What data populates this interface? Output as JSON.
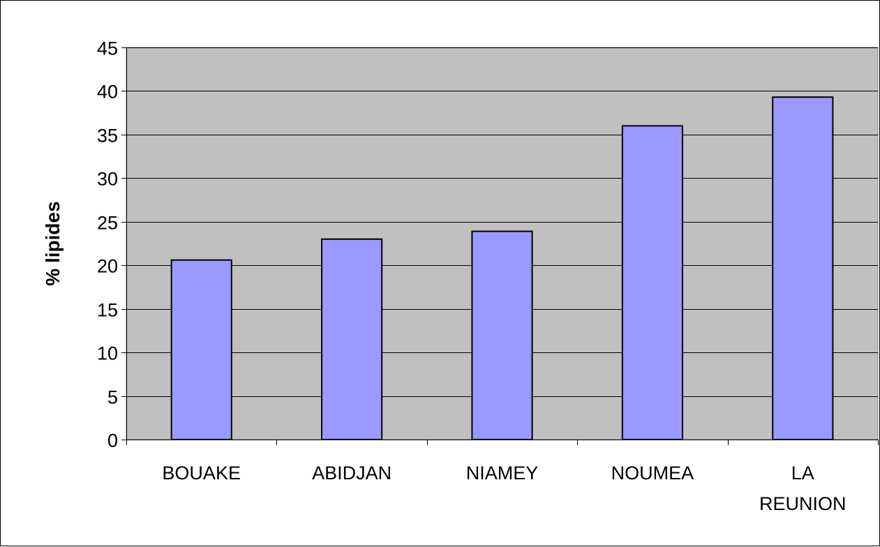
{
  "chart_data": {
    "type": "bar",
    "title": "",
    "xlabel": "",
    "ylabel": "% lipides",
    "categories": [
      "BOUAKE",
      "ABIDJAN",
      "NIAMEY",
      "NOUMEA",
      "LA REUNION"
    ],
    "category_label_lines": [
      [
        "BOUAKE"
      ],
      [
        "ABIDJAN"
      ],
      [
        "NIAMEY"
      ],
      [
        "NOUMEA"
      ],
      [
        "LA",
        "REUNION"
      ]
    ],
    "values": [
      20.6,
      23.0,
      23.9,
      36.0,
      39.3
    ],
    "ylim": [
      0,
      45
    ],
    "yticks": [
      0,
      5,
      10,
      15,
      20,
      25,
      30,
      35,
      40,
      45
    ],
    "grid": true,
    "legend": "none",
    "colors": {
      "bar_fill": "#9999ff",
      "bar_stroke": "#000000",
      "plot_background": "#c0c0c0",
      "gridline": "#000000",
      "page_background": "#ffffff"
    }
  }
}
